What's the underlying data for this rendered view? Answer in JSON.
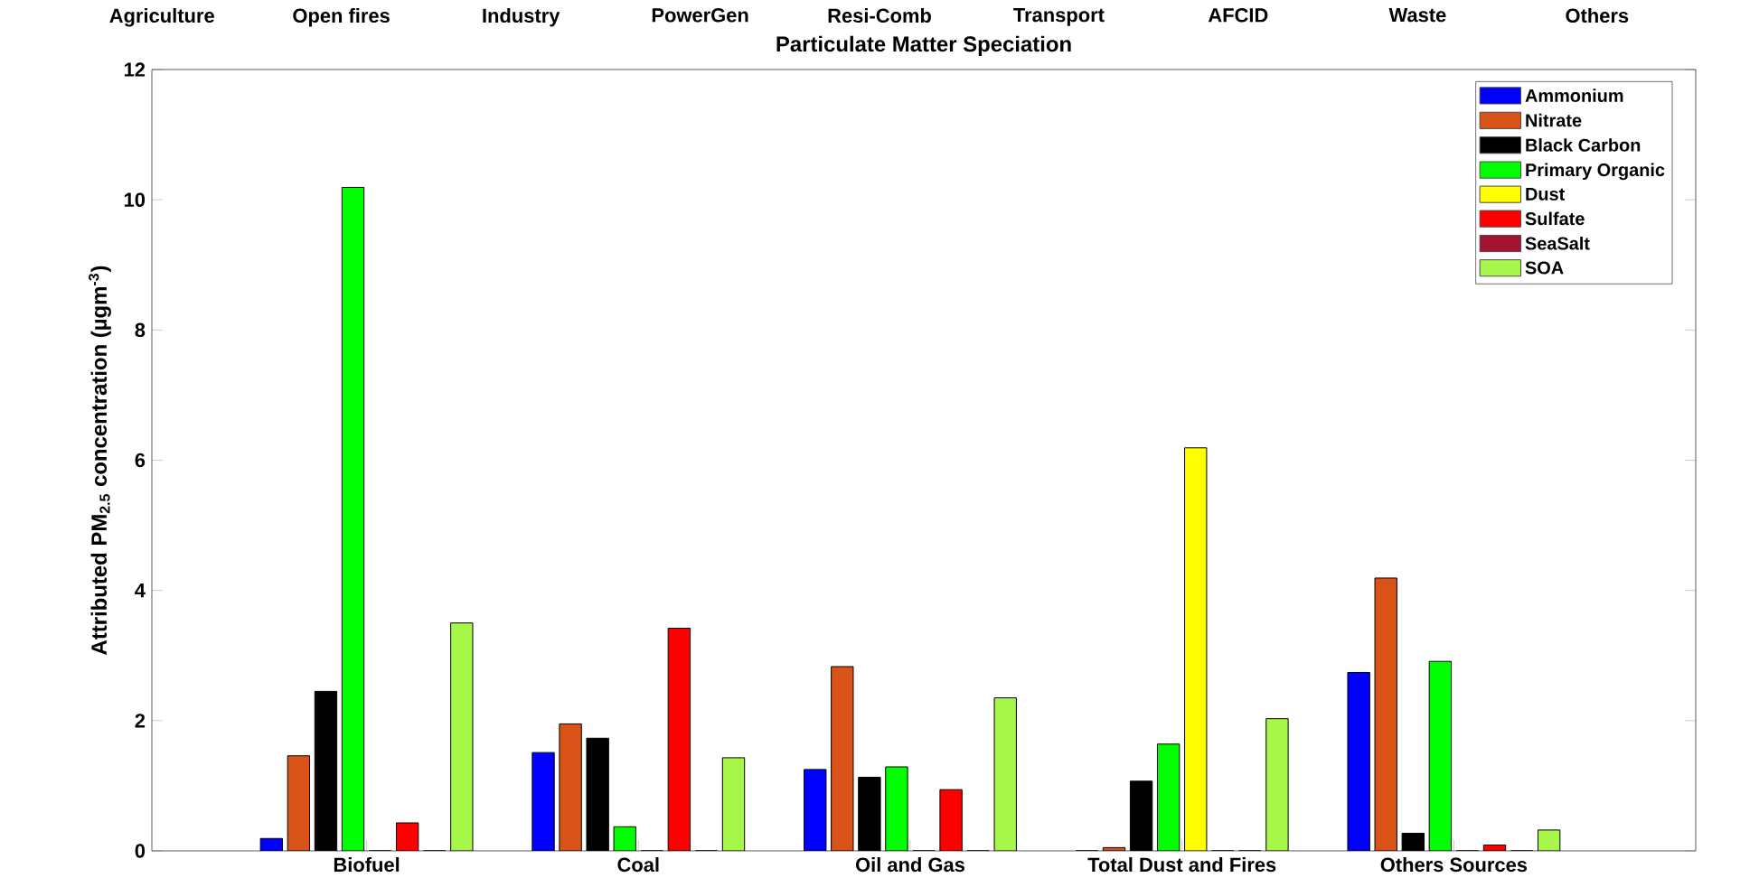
{
  "chart_data": {
    "type": "bar",
    "title": "Particulate Matter Speciation",
    "ylabel": "Attributed PM$_{2.5}$ concentration (µgm$^{-3}$)",
    "annotations": [
      "Agriculture",
      "Open fires",
      "Industry",
      "PowerGen",
      "Resi-Comb",
      "Transport",
      "AFCID",
      "Waste",
      "Others"
    ],
    "categories": [
      "Biofuel",
      "Coal",
      "Oil and Gas",
      "Total Dust and Fires",
      "Others Sources"
    ],
    "series": [
      {
        "name": "Ammonium",
        "color": "#0000ff",
        "values": [
          0.19,
          1.51,
          1.25,
          0,
          2.74
        ]
      },
      {
        "name": "Nitrate",
        "color": "#d95319",
        "values": [
          1.46,
          1.95,
          2.83,
          0.05,
          4.19
        ]
      },
      {
        "name": "Black Carbon",
        "color": "#000000",
        "values": [
          2.45,
          1.73,
          1.13,
          1.07,
          0.27
        ]
      },
      {
        "name": "Primary Organic",
        "color": "#00ff00",
        "values": [
          10.19,
          0.37,
          1.29,
          1.64,
          2.91
        ]
      },
      {
        "name": "Dust",
        "color": "#ffff00",
        "values": [
          0,
          0,
          0,
          6.19,
          0
        ]
      },
      {
        "name": "Sulfate",
        "color": "#ff0000",
        "values": [
          0.43,
          3.42,
          0.94,
          0,
          0.09
        ]
      },
      {
        "name": "SeaSalt",
        "color": "#a2142f",
        "values": [
          0,
          0,
          0,
          0,
          0
        ]
      },
      {
        "name": "SOA",
        "color": "#a6f74a",
        "values": [
          3.5,
          1.43,
          2.35,
          2.03,
          0.32
        ]
      }
    ],
    "ylim": [
      0,
      12
    ],
    "yticks": [
      0,
      2,
      4,
      6,
      8,
      10,
      12
    ],
    "grid": false,
    "legend": "top right"
  }
}
